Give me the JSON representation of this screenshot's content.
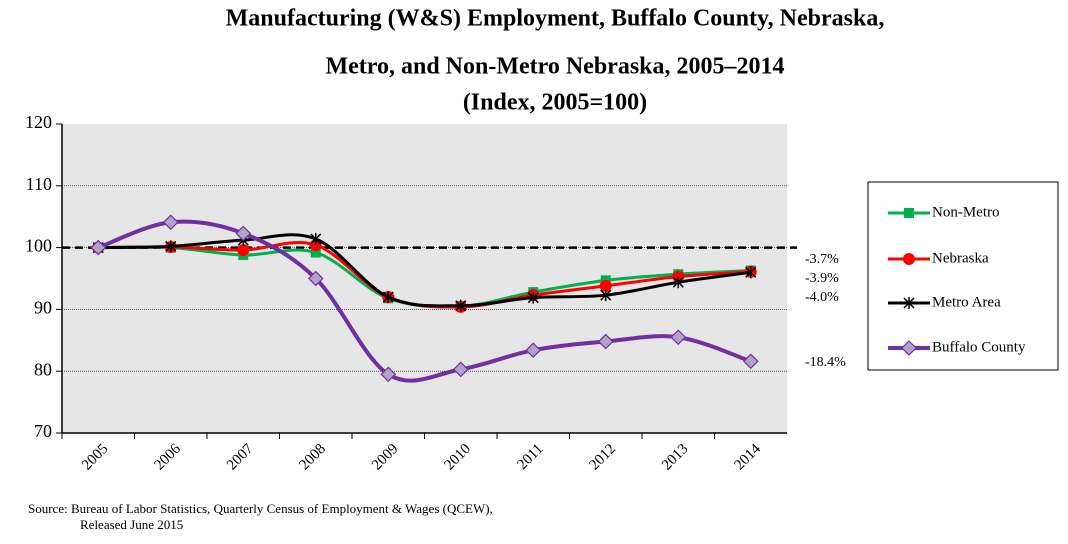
{
  "chart_data": {
    "type": "line",
    "title_lines": [
      "Manufacturing (W&S) Employment, Buffalo County, Nebraska,",
      "Metro, and Non-Metro Nebraska,  2005–2014",
      "(Index, 2005=100)"
    ],
    "categories": [
      "2005",
      "2006",
      "2007",
      "2008",
      "2009",
      "2010",
      "2011",
      "2012",
      "2013",
      "2014"
    ],
    "series": [
      {
        "name": "Non-Metro",
        "color": "#00b050",
        "marker": "square",
        "values": [
          100,
          100,
          98.8,
          99.2,
          91.8,
          90.5,
          92.8,
          94.7,
          95.7,
          96.3
        ]
      },
      {
        "name": "Nebraska",
        "color": "#ff0000",
        "marker": "circle",
        "values": [
          100,
          100.1,
          99.6,
          100.4,
          92.0,
          90.4,
          92.3,
          93.8,
          95.3,
          96.1
        ]
      },
      {
        "name": "Metro Area",
        "color": "#000000",
        "marker": "star",
        "values": [
          100,
          100.2,
          101.2,
          101.4,
          92.0,
          90.6,
          91.9,
          92.3,
          94.4,
          96.0
        ]
      },
      {
        "name": "Buffalo County",
        "color": "#7030a0",
        "marker": "diamond",
        "values": [
          100,
          104.1,
          102.3,
          95.0,
          79.5,
          80.3,
          83.4,
          84.8,
          85.5,
          81.6
        ]
      }
    ],
    "reference_line": 100,
    "annotations": [
      "-3.7%",
      "-3.9%",
      "-4.0%",
      "-18.4%"
    ],
    "ylim": [
      70,
      120
    ],
    "yticks": [
      70,
      80,
      90,
      100,
      110,
      120
    ],
    "grid": true,
    "legend": "right",
    "source_lines": [
      "Source: Bureau of Labor Statistics, Quarterly Census of Employment & Wages (QCEW),",
      "Released June 2015"
    ]
  }
}
